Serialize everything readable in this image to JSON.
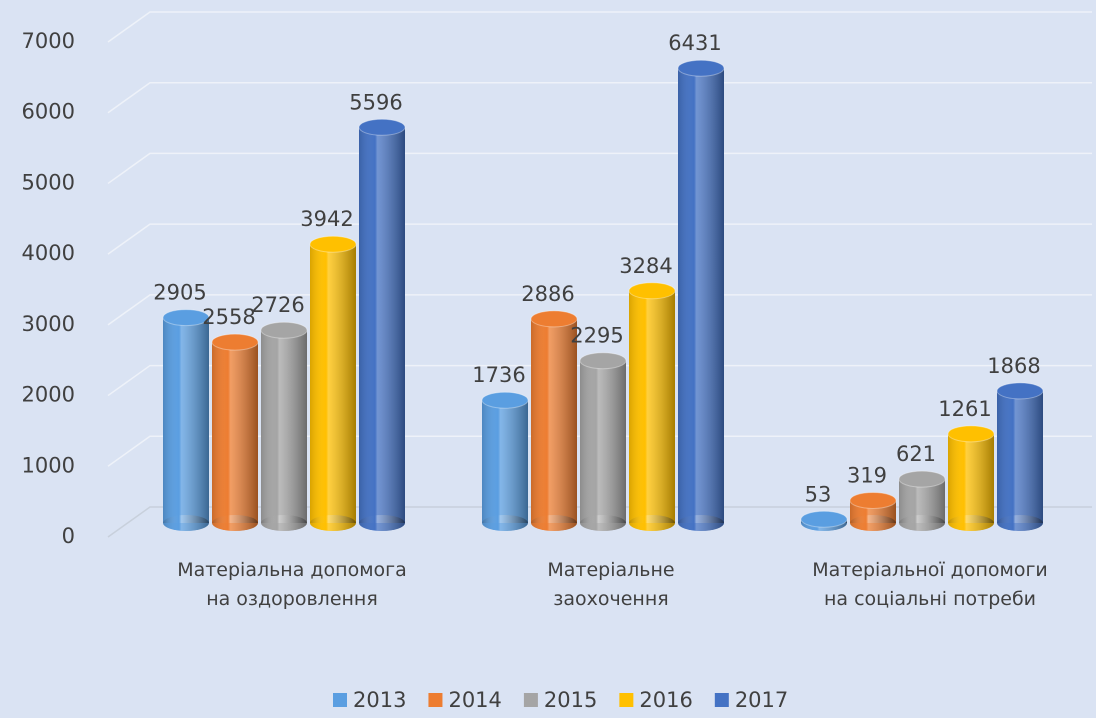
{
  "chart_data": {
    "type": "bar3d",
    "categories": [
      "Матеріальна допомога на оздоровлення",
      "Матеріальне заохочення",
      "Матеріальної допомоги на соціальні потреби"
    ],
    "series": [
      {
        "name": "2013",
        "color": "#5a9ee1",
        "values": [
          2905,
          1736,
          53
        ]
      },
      {
        "name": "2014",
        "color": "#ed7d31",
        "values": [
          2558,
          2886,
          319
        ]
      },
      {
        "name": "2015",
        "color": "#a5a5a5",
        "values": [
          2726,
          2295,
          621
        ]
      },
      {
        "name": "2016",
        "color": "#ffc000",
        "values": [
          3942,
          3284,
          1261
        ]
      },
      {
        "name": "2017",
        "color": "#4472c4",
        "values": [
          5596,
          6431,
          1868
        ]
      }
    ],
    "ylim": [
      0,
      7000
    ],
    "yticks": [
      0,
      1000,
      2000,
      3000,
      4000,
      5000,
      6000,
      7000
    ],
    "grid": true,
    "legend": "bottom"
  }
}
